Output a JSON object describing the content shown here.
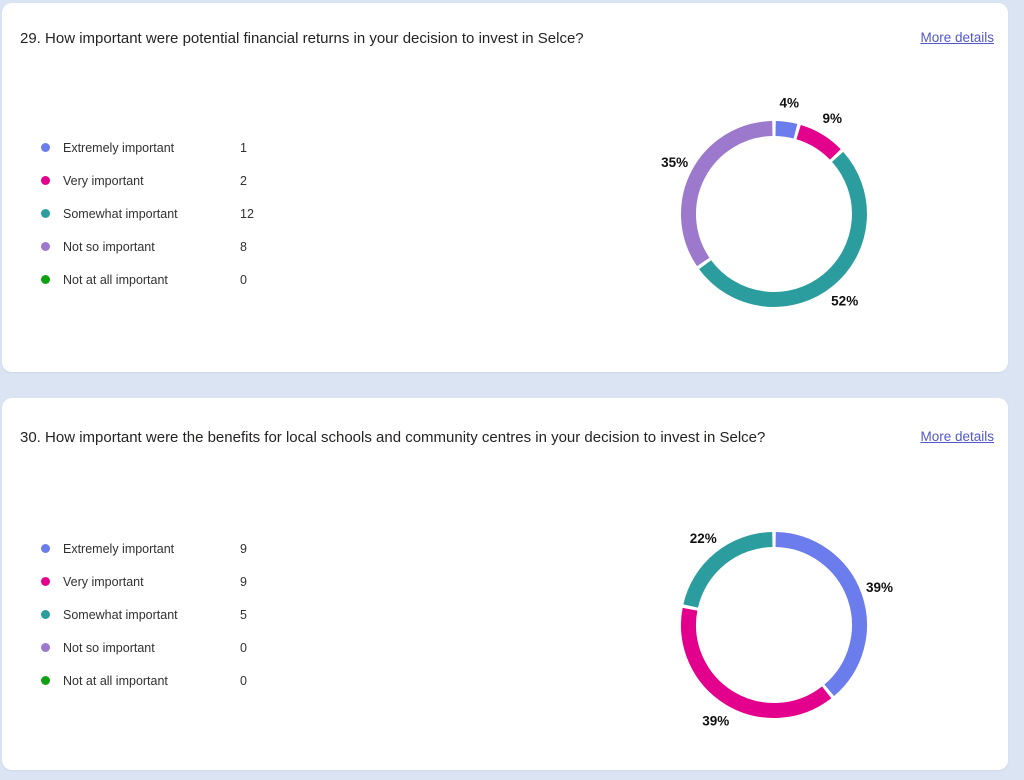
{
  "page": {
    "background_color": "#DBE4F2",
    "card_color": "#FFFFFF",
    "accent_link_color": "#5358C8"
  },
  "questions": [
    {
      "title": "29. How important were potential financial returns in your decision to invest in Selce?",
      "more_details": "More details",
      "options": [
        {
          "label": "Extremely important",
          "count": 1,
          "color": "#6B7CEC"
        },
        {
          "label": "Very important",
          "count": 2,
          "color": "#E3008C"
        },
        {
          "label": "Somewhat important",
          "count": 12,
          "color": "#2B9D9E"
        },
        {
          "label": "Not so important",
          "count": 8,
          "color": "#9C79CC"
        },
        {
          "label": "Not at all important",
          "count": 0,
          "color": "#0FA10F"
        }
      ],
      "chart_data": {
        "type": "pie",
        "donut": true,
        "title": "",
        "categories": [
          "Extremely important",
          "Very important",
          "Somewhat important",
          "Not so important",
          "Not at all important"
        ],
        "values": [
          1,
          2,
          12,
          8,
          0
        ],
        "percents": [
          4,
          9,
          52,
          35,
          0
        ],
        "percent_labels": [
          "4%",
          "9%",
          "52%",
          "35%",
          ""
        ],
        "colors": [
          "#6B7CEC",
          "#E3008C",
          "#2B9D9E",
          "#9C79CC",
          "#0FA10F"
        ],
        "legend_position": "left",
        "start_angle_deg": 0,
        "direction": "clockwise"
      }
    },
    {
      "title": "30. How important were the benefits for local schools and community centres in your decision to invest in Selce?",
      "more_details": "More details",
      "options": [
        {
          "label": "Extremely important",
          "count": 9,
          "color": "#6B7CEC"
        },
        {
          "label": "Very important",
          "count": 9,
          "color": "#E3008C"
        },
        {
          "label": "Somewhat important",
          "count": 5,
          "color": "#2B9D9E"
        },
        {
          "label": "Not so important",
          "count": 0,
          "color": "#9C79CC"
        },
        {
          "label": "Not at all important",
          "count": 0,
          "color": "#0FA10F"
        }
      ],
      "chart_data": {
        "type": "pie",
        "donut": true,
        "title": "",
        "categories": [
          "Extremely important",
          "Very important",
          "Somewhat important",
          "Not so important",
          "Not at all important"
        ],
        "values": [
          9,
          9,
          5,
          0,
          0
        ],
        "percents": [
          39,
          39,
          22,
          0,
          0
        ],
        "percent_labels": [
          "39%",
          "39%",
          "22%",
          "",
          ""
        ],
        "colors": [
          "#6B7CEC",
          "#E3008C",
          "#2B9D9E",
          "#9C79CC",
          "#0FA10F"
        ],
        "legend_position": "left",
        "start_angle_deg": 0,
        "direction": "clockwise"
      }
    }
  ]
}
